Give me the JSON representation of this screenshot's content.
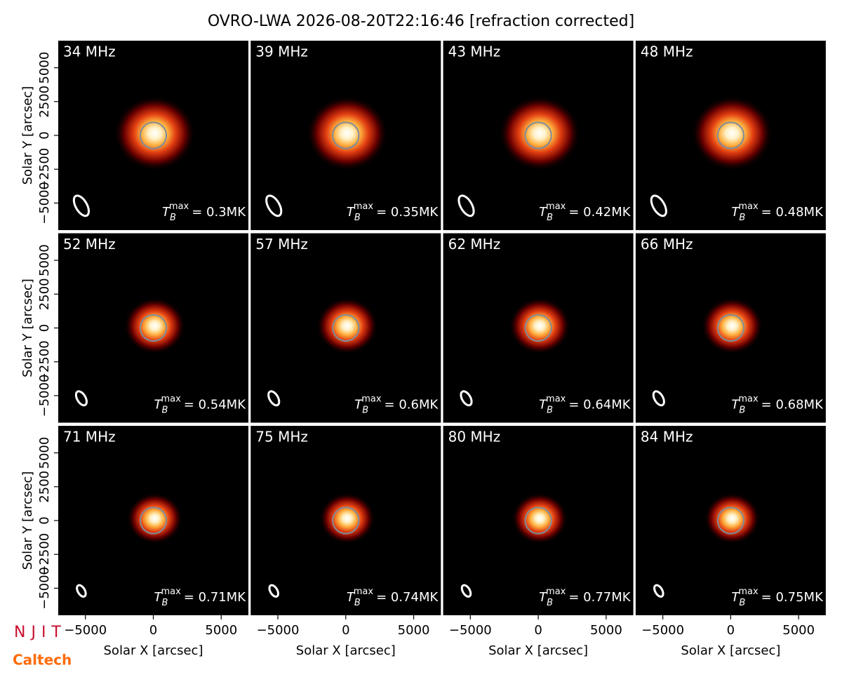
{
  "title": "OVRO-LWA 2026-08-20T22:16:46 [refraction corrected]",
  "logos": [
    "NJIT",
    "Caltech"
  ],
  "chart_data": [
    {
      "type": "image",
      "title": "34 MHz",
      "annotation": {
        "base": "T",
        "sub": "B",
        "sup": "max",
        "text": "= 0.3MK"
      },
      "xlim": [
        -7000,
        7000
      ],
      "ylim": [
        -7000,
        7000
      ],
      "ylabel": "Solar Y [arcsec]",
      "yticks": [
        {
          "value": -5000,
          "label": "−5000"
        },
        {
          "value": -2500,
          "label": "−2500"
        },
        0,
        2500,
        5000
      ]
    },
    {
      "type": "image",
      "title": "39 MHz",
      "annotation": {
        "base": "T",
        "sub": "B",
        "sup": "max",
        "text": "= 0.35MK"
      },
      "xlim": [
        -7000,
        7000
      ],
      "ylim": [
        -7000,
        7000
      ]
    },
    {
      "type": "image",
      "title": "43 MHz",
      "annotation": {
        "base": "T",
        "sub": "B",
        "sup": "max",
        "text": "= 0.42MK"
      },
      "xlim": [
        -7000,
        7000
      ],
      "ylim": [
        -7000,
        7000
      ]
    },
    {
      "type": "image",
      "title": "48 MHz",
      "annotation": {
        "base": "T",
        "sub": "B",
        "sup": "max",
        "text": "= 0.48MK"
      },
      "xlim": [
        -7000,
        7000
      ],
      "ylim": [
        -7000,
        7000
      ]
    },
    {
      "type": "image",
      "title": "52 MHz",
      "annotation": {
        "base": "T",
        "sub": "B",
        "sup": "max",
        "text": "= 0.54MK"
      },
      "xlim": [
        -7000,
        7000
      ],
      "ylim": [
        -7000,
        7000
      ],
      "ylabel": "Solar Y [arcsec]",
      "yticks": [
        {
          "value": -5000,
          "label": "−5000"
        },
        {
          "value": -2500,
          "label": "−2500"
        },
        0,
        2500,
        5000
      ]
    },
    {
      "type": "image",
      "title": "57 MHz",
      "annotation": {
        "base": "T",
        "sub": "B",
        "sup": "max",
        "text": "= 0.6MK"
      },
      "xlim": [
        -7000,
        7000
      ],
      "ylim": [
        -7000,
        7000
      ]
    },
    {
      "type": "image",
      "title": "62 MHz",
      "annotation": {
        "base": "T",
        "sub": "B",
        "sup": "max",
        "text": "= 0.64MK"
      },
      "xlim": [
        -7000,
        7000
      ],
      "ylim": [
        -7000,
        7000
      ]
    },
    {
      "type": "image",
      "title": "66 MHz",
      "annotation": {
        "base": "T",
        "sub": "B",
        "sup": "max",
        "text": "= 0.68MK"
      },
      "xlim": [
        -7000,
        7000
      ],
      "ylim": [
        -7000,
        7000
      ]
    },
    {
      "type": "image",
      "title": "71 MHz",
      "annotation": {
        "base": "T",
        "sub": "B",
        "sup": "max",
        "text": "= 0.71MK"
      },
      "xlim": [
        -7000,
        7000
      ],
      "ylim": [
        -7000,
        7000
      ],
      "ylabel": "Solar Y [arcsec]",
      "yticks": [
        {
          "value": -5000,
          "label": "−5000"
        },
        {
          "value": -2500,
          "label": "−2500"
        },
        0,
        2500,
        5000
      ],
      "xlabel": "Solar X [arcsec]",
      "xticks": [
        {
          "value": -5000,
          "label": "−5000"
        },
        0,
        5000
      ]
    },
    {
      "type": "image",
      "title": "75 MHz",
      "annotation": {
        "base": "T",
        "sub": "B",
        "sup": "max",
        "text": "= 0.74MK"
      },
      "xlim": [
        -7000,
        7000
      ],
      "ylim": [
        -7000,
        7000
      ],
      "xlabel": "Solar X [arcsec]",
      "xticks": [
        {
          "value": -5000,
          "label": "−5000"
        },
        0,
        5000
      ]
    },
    {
      "type": "image",
      "title": "80 MHz",
      "annotation": {
        "base": "T",
        "sub": "B",
        "sup": "max",
        "text": "= 0.77MK"
      },
      "xlim": [
        -7000,
        7000
      ],
      "ylim": [
        -7000,
        7000
      ],
      "xlabel": "Solar X [arcsec]",
      "xticks": [
        {
          "value": -5000,
          "label": "−5000"
        },
        0,
        5000
      ]
    },
    {
      "type": "image",
      "title": "84 MHz",
      "annotation": {
        "base": "T",
        "sub": "B",
        "sup": "max",
        "text": "= 0.75MK"
      },
      "xlim": [
        -7000,
        7000
      ],
      "ylim": [
        -7000,
        7000
      ],
      "xlabel": "Solar X [arcsec]",
      "xticks": [
        {
          "value": -5000,
          "label": "−5000"
        },
        0,
        5000
      ]
    }
  ]
}
